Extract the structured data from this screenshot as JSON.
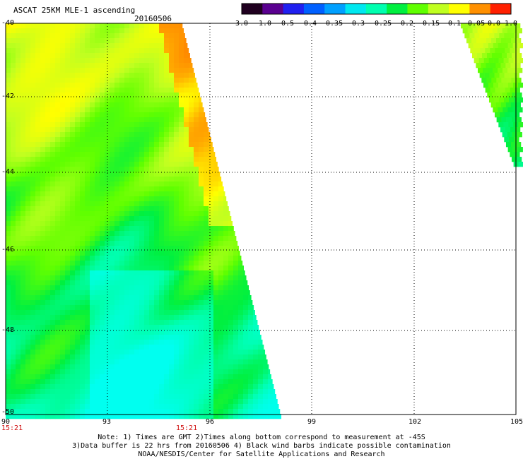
{
  "header": {
    "title": "ASCAT 25KM MLE-1 ascending",
    "date": "20160506"
  },
  "colorbar": {
    "labels": [
      "-3.0",
      "-1.0",
      "-0.5",
      "-0.4",
      "-0.35",
      "-0.3",
      "-0.25",
      "-0.2",
      "-0.15",
      "-0.1",
      "-0.05",
      "0.0",
      "1.0"
    ],
    "colors": [
      "#200020",
      "#5a0090",
      "#2020f0",
      "#0060ff",
      "#00a0ff",
      "#00e8f0",
      "#00ffb0",
      "#00f040",
      "#60ff00",
      "#c0ff20",
      "#ffff00",
      "#ff9000",
      "#ff2000"
    ]
  },
  "axes": {
    "x_ticks": [
      "90",
      "93",
      "96",
      "99",
      "102",
      "105"
    ],
    "y_ticks": [
      "-40",
      "-42",
      "-44",
      "-46",
      "-48",
      "-50"
    ],
    "time_labels": [
      "15:21",
      "15:21"
    ]
  },
  "notes": {
    "line1": "Note: 1) Times are GMT 2)Times along bottom correspond to measurement at -45S",
    "line2": "3)Data buffer is 22 hrs from 20160506 4) Black wind barbs indicate possible contamination",
    "line3": "NOAA/NESDIS/Center for Satellite Applications and Research"
  }
}
